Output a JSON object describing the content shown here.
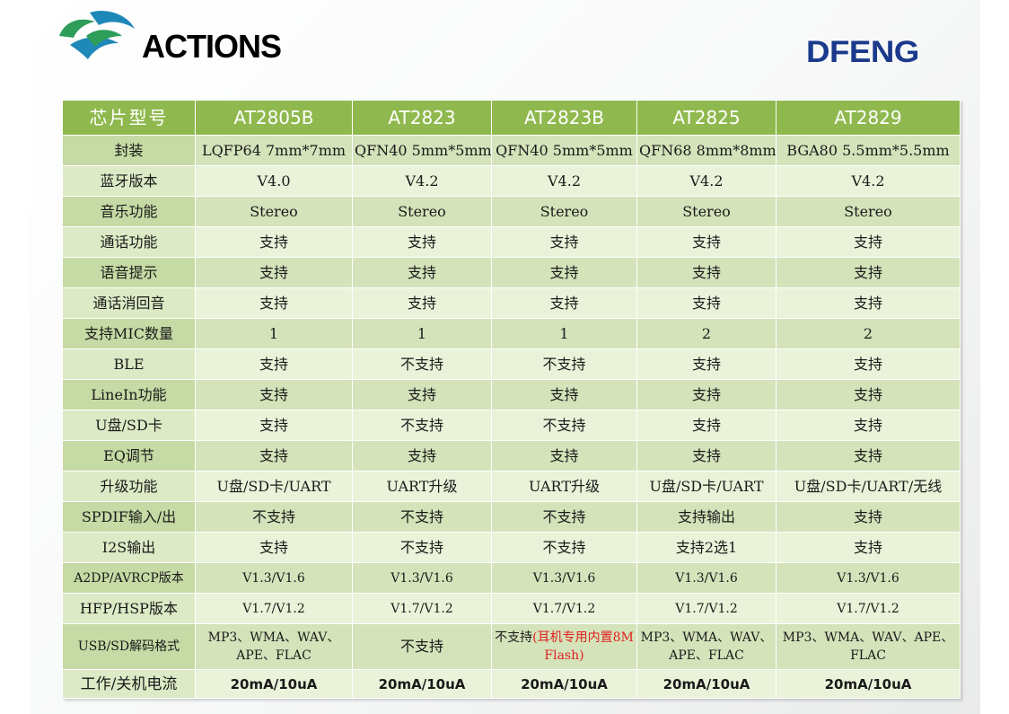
{
  "brand": {
    "left_logo_text": "ACTIONS",
    "right_logo_text": "DFENG"
  },
  "colors": {
    "header_green": "#8fb94e",
    "row_light": "#eaf3d9",
    "row_dark": "#d4e3ba",
    "dfeng_blue": "#1b3a8c",
    "note_red": "#e02020"
  },
  "table": {
    "header": [
      "芯片型号",
      "AT2805B",
      "AT2823",
      "AT2823B",
      "AT2825",
      "AT2829"
    ],
    "rows": [
      {
        "label": "封装",
        "cells": [
          "LQFP64 7mm*7mm",
          "QFN40 5mm*5mm",
          "QFN40 5mm*5mm",
          "QFN68 8mm*8mm",
          "BGA80 5.5mm*5.5mm"
        ]
      },
      {
        "label": "蓝牙版本",
        "cells": [
          "V4.0",
          "V4.2",
          "V4.2",
          "V4.2",
          "V4.2"
        ]
      },
      {
        "label": "音乐功能",
        "cells": [
          "Stereo",
          "Stereo",
          "Stereo",
          "Stereo",
          "Stereo"
        ]
      },
      {
        "label": "通话功能",
        "cells": [
          "支持",
          "支持",
          "支持",
          "支持",
          "支持"
        ]
      },
      {
        "label": "语音提示",
        "cells": [
          "支持",
          "支持",
          "支持",
          "支持",
          "支持"
        ]
      },
      {
        "label": "通话消回音",
        "cells": [
          "支持",
          "支持",
          "支持",
          "支持",
          "支持"
        ]
      },
      {
        "label": "支持MIC数量",
        "cells": [
          "1",
          "1",
          "1",
          "2",
          "2"
        ]
      },
      {
        "label": "BLE",
        "cells": [
          "支持",
          "不支持",
          "不支持",
          "支持",
          "支持"
        ]
      },
      {
        "label": "LineIn功能",
        "cells": [
          "支持",
          "支持",
          "支持",
          "支持",
          "支持"
        ]
      },
      {
        "label": "U盘/SD卡",
        "cells": [
          "支持",
          "不支持",
          "不支持",
          "支持",
          "支持"
        ]
      },
      {
        "label": "EQ调节",
        "cells": [
          "支持",
          "支持",
          "支持",
          "支持",
          "支持"
        ]
      },
      {
        "label": "升级功能",
        "cells": [
          "U盘/SD卡/UART",
          "UART升级",
          "UART升级",
          "U盘/SD卡/UART",
          "U盘/SD卡/UART/无线"
        ]
      },
      {
        "label": "SPDIF输入/出",
        "cells": [
          "不支持",
          "不支持",
          "不支持",
          "支持输出",
          "支持"
        ]
      },
      {
        "label": "I2S输出",
        "cells": [
          "支持",
          "不支持",
          "不支持",
          "支持2选1",
          "支持"
        ]
      },
      {
        "label": "A2DP/AVRCP版本",
        "cells": [
          "V1.3/V1.6",
          "V1.3/V1.6",
          "V1.3/V1.6",
          "V1.3/V1.6",
          "V1.3/V1.6"
        ]
      },
      {
        "label": "HFP/HSP版本",
        "cells": [
          "V1.7/V1.2",
          "V1.7/V1.2",
          "V1.7/V1.2",
          "V1.7/V1.2",
          "V1.7/V1.2"
        ]
      }
    ],
    "decode_row": {
      "label": "USB/SD解码格式",
      "at2805b": "MP3、WMA、WAV、APE、FLAC",
      "at2823": "不支持",
      "at2823b_main": "不支持",
      "at2823b_note": "(耳机专用内置8M Flash)",
      "at2825": "MP3、WMA、WAV、APE、FLAC",
      "at2829": "MP3、WMA、WAV、APE、FLAC"
    },
    "footer_row": {
      "label": "工作/关机电流",
      "cells": [
        "20mA/10uA",
        "20mA/10uA",
        "20mA/10uA",
        "20mA/10uA",
        "20mA/10uA"
      ]
    }
  }
}
